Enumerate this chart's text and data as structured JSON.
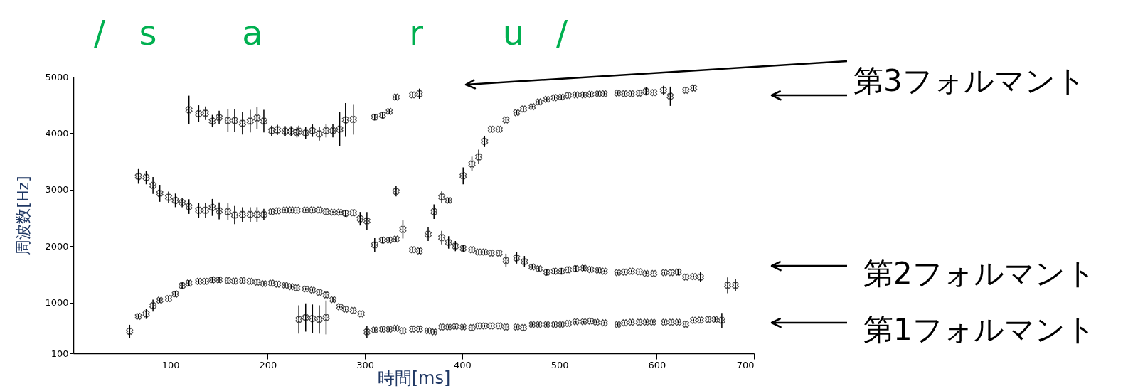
{
  "chart_data": {
    "type": "scatter",
    "xlabel": "時間[ms]",
    "ylabel": "周波数[Hz]",
    "xlim": [
      0,
      700
    ],
    "xticks": [
      100,
      200,
      300,
      400,
      500,
      600,
      700
    ],
    "ylim": [
      100,
      5000
    ],
    "yticks": [
      100,
      1000,
      2000,
      3000,
      4000,
      5000
    ],
    "grid": false,
    "legend": false,
    "marker": "cross",
    "annotations": [
      "/",
      "s",
      "a",
      "r",
      "u",
      "/",
      "第3フォルマント",
      "第2フォルマント",
      "第1フォルマント"
    ],
    "series": [
      {
        "color": "#000000",
        "x": [
          58,
          67,
          75,
          82,
          89,
          98,
          105,
          112,
          119,
          129,
          136,
          143,
          150,
          159,
          166,
          174,
          182,
          189,
          196,
          204,
          210,
          218,
          224,
          230,
          239,
          246,
          253,
          260,
          267,
          274,
          280,
          288,
          296,
          232,
          239,
          246,
          253,
          260,
          302,
          310,
          318,
          325,
          332,
          339,
          349,
          356,
          365,
          371,
          379,
          386,
          393,
          401,
          410,
          417,
          423,
          430,
          438,
          445,
          456,
          463,
          472,
          479,
          487,
          495,
          502,
          509,
          517,
          525,
          532,
          538,
          546,
          560,
          567,
          574,
          582,
          589,
          596,
          608,
          615,
          622,
          630,
          638,
          645,
          653,
          660,
          667
        ],
        "values": [
          490,
          755,
          800,
          945,
          1040,
          1070,
          1150,
          1300,
          1345,
          1375,
          1375,
          1400,
          1400,
          1390,
          1380,
          1390,
          1375,
          1360,
          1335,
          1345,
          1325,
          1305,
          1280,
          1260,
          1240,
          1220,
          1180,
          1135,
          1050,
          925,
          880,
          860,
          800,
          700,
          735,
          715,
          700,
          735,
          480,
          515,
          525,
          525,
          545,
          500,
          530,
          530,
          500,
          480,
          565,
          565,
          575,
          565,
          555,
          585,
          585,
          585,
          585,
          565,
          565,
          555,
          610,
          610,
          610,
          610,
          610,
          630,
          660,
          660,
          670,
          650,
          640,
          610,
          640,
          650,
          650,
          650,
          650,
          650,
          650,
          650,
          615,
          685,
          690,
          700,
          700,
          685
        ],
        "errors": [
          115,
          40,
          90,
          105,
          40,
          40,
          50,
          60,
          50,
          40,
          40,
          50,
          50,
          40,
          40,
          40,
          40,
          40,
          30,
          30,
          30,
          30,
          30,
          30,
          20,
          20,
          20,
          60,
          40,
          20,
          20,
          30,
          20,
          250,
          250,
          250,
          250,
          300,
          110,
          30,
          30,
          30,
          30,
          30,
          20,
          20,
          30,
          30,
          20,
          20,
          20,
          30,
          30,
          20,
          20,
          20,
          20,
          20,
          20,
          20,
          20,
          20,
          20,
          20,
          20,
          20,
          20,
          20,
          20,
          20,
          20,
          20,
          20,
          20,
          20,
          20,
          20,
          20,
          20,
          20,
          20,
          20,
          20,
          40,
          40,
          130
        ]
      },
      {
        "color": "#000000",
        "x": [
          67,
          75,
          82,
          89,
          98,
          105,
          112,
          119,
          129,
          136,
          143,
          150,
          159,
          166,
          174,
          182,
          189,
          196,
          204,
          210,
          218,
          224,
          230,
          239,
          246,
          253,
          260,
          267,
          274,
          280,
          288,
          295,
          302,
          310,
          318,
          325,
          332,
          339,
          349,
          356,
          365,
          379,
          386,
          393,
          401,
          410,
          417,
          423,
          430,
          438,
          445,
          456,
          464,
          472,
          479,
          487,
          495,
          502,
          509,
          517,
          525,
          532,
          540,
          546,
          560,
          567,
          574,
          582,
          589,
          597,
          608,
          615,
          622,
          630,
          638,
          645,
          673,
          681,
          332
        ],
        "values": [
          3235,
          3215,
          3075,
          2935,
          2865,
          2810,
          2770,
          2700,
          2635,
          2635,
          2685,
          2625,
          2610,
          2550,
          2560,
          2560,
          2560,
          2560,
          2610,
          2625,
          2640,
          2640,
          2635,
          2640,
          2640,
          2640,
          2610,
          2600,
          2600,
          2580,
          2590,
          2485,
          2445,
          2020,
          2105,
          2105,
          2125,
          2295,
          1935,
          1915,
          2210,
          2150,
          2065,
          2000,
          1960,
          1935,
          1895,
          1895,
          1875,
          1875,
          1745,
          1790,
          1725,
          1630,
          1600,
          1535,
          1555,
          1555,
          1580,
          1600,
          1610,
          1585,
          1570,
          1555,
          1530,
          1540,
          1555,
          1545,
          1515,
          1515,
          1530,
          1530,
          1540,
          1450,
          1460,
          1450,
          1305,
          1305,
          2970
        ],
        "errors": [
          130,
          120,
          150,
          150,
          100,
          120,
          80,
          130,
          130,
          130,
          150,
          150,
          150,
          160,
          130,
          130,
          130,
          100,
          40,
          30,
          20,
          20,
          20,
          20,
          20,
          20,
          20,
          20,
          20,
          60,
          60,
          120,
          160,
          120,
          60,
          40,
          40,
          160,
          50,
          50,
          120,
          120,
          110,
          90,
          60,
          40,
          30,
          30,
          30,
          30,
          120,
          100,
          100,
          40,
          40,
          60,
          50,
          60,
          60,
          60,
          50,
          30,
          20,
          20,
          20,
          20,
          20,
          20,
          20,
          20,
          20,
          20,
          60,
          30,
          20,
          90,
          140,
          110,
          90
        ]
      },
      {
        "color": "#000000",
        "x": [
          119,
          129,
          136,
          143,
          150,
          159,
          166,
          174,
          182,
          189,
          196,
          204,
          210,
          218,
          224,
          230,
          232,
          239,
          246,
          253,
          260,
          267,
          274,
          280,
          288,
          310,
          318,
          325,
          332,
          349,
          356,
          371,
          379,
          386,
          401,
          410,
          417,
          423,
          430,
          438,
          445,
          456,
          463,
          472,
          479,
          487,
          495,
          502,
          509,
          517,
          525,
          532,
          540,
          546,
          560,
          567,
          574,
          582,
          589,
          597,
          607,
          614,
          630,
          638
        ],
        "values": [
          4415,
          4345,
          4355,
          4215,
          4280,
          4225,
          4225,
          4175,
          4215,
          4270,
          4215,
          4045,
          4060,
          4035,
          4035,
          4015,
          4035,
          4005,
          4045,
          3990,
          4045,
          4045,
          4070,
          4235,
          4245,
          4285,
          4320,
          4385,
          4640,
          4680,
          4700,
          2610,
          2870,
          2810,
          3245,
          3455,
          3580,
          3855,
          4070,
          4070,
          4235,
          4365,
          4430,
          4470,
          4555,
          4600,
          4630,
          4640,
          4670,
          4680,
          4680,
          4690,
          4700,
          4700,
          4710,
          4700,
          4700,
          4710,
          4740,
          4720,
          4760,
          4655,
          4760,
          4800
        ],
        "errors": [
          250,
          150,
          120,
          110,
          120,
          200,
          200,
          200,
          200,
          200,
          200,
          90,
          90,
          90,
          90,
          90,
          100,
          110,
          110,
          120,
          120,
          120,
          300,
          300,
          270,
          60,
          60,
          40,
          50,
          50,
          90,
          130,
          100,
          50,
          150,
          130,
          130,
          100,
          40,
          40,
          30,
          40,
          30,
          20,
          30,
          30,
          30,
          40,
          30,
          30,
          40,
          40,
          30,
          30,
          30,
          30,
          30,
          30,
          70,
          40,
          80,
          170,
          30,
          40
        ]
      }
    ]
  }
}
